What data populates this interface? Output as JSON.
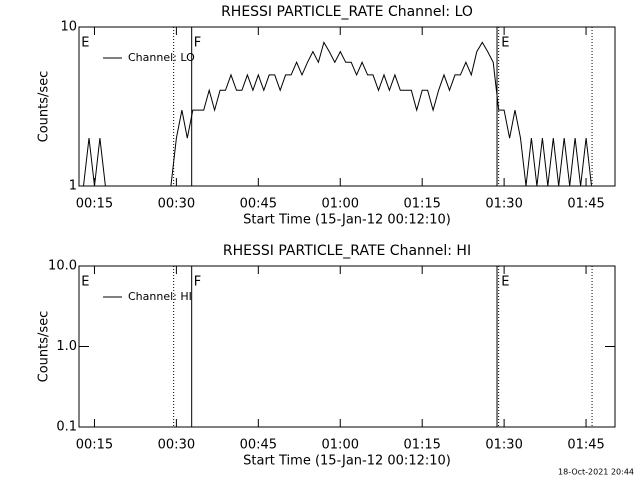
{
  "chart_data": [
    {
      "type": "line",
      "title": "RHESSI PARTICLE_RATE Channel: LO",
      "xlabel": "Start Time (15-Jan-12 00:12:10)",
      "ylabel": "Counts/sec",
      "log_y": true,
      "ylim": [
        1,
        10
      ],
      "yticks": [
        1,
        10
      ],
      "xlim": [
        12.17,
        110.3
      ],
      "xticks": [
        {
          "value": 15,
          "label": "00:15"
        },
        {
          "value": 30,
          "label": "00:30"
        },
        {
          "value": 45,
          "label": "00:45"
        },
        {
          "value": 60,
          "label": "01:00"
        },
        {
          "value": 75,
          "label": "01:15"
        },
        {
          "value": 90,
          "label": "01:30"
        },
        {
          "value": 105,
          "label": "01:45"
        }
      ],
      "vlines": [
        {
          "x": 29.5,
          "style": "dotted"
        },
        {
          "x": 32.8,
          "style": "solid"
        },
        {
          "x": 88.7,
          "style": "solid"
        },
        {
          "x": 89.0,
          "style": "dotted"
        },
        {
          "x": 106.1,
          "style": "dotted"
        }
      ],
      "annotations": [
        {
          "x": 12.4,
          "text": "E"
        },
        {
          "x": 33.0,
          "text": "F"
        },
        {
          "x": 89.3,
          "text": "E"
        }
      ],
      "legend": "upper left",
      "series": [
        {
          "name": "Channel: LO",
          "color": "#000000",
          "x": [
            13,
            14,
            15,
            16,
            17,
            18,
            19,
            20,
            21,
            22,
            23,
            24,
            25,
            26,
            27,
            28,
            29,
            30,
            31,
            32,
            33,
            34,
            35,
            36,
            37,
            38,
            39,
            40,
            41,
            42,
            43,
            44,
            45,
            46,
            47,
            48,
            49,
            50,
            51,
            52,
            53,
            54,
            55,
            56,
            57,
            58,
            59,
            60,
            61,
            62,
            63,
            64,
            65,
            66,
            67,
            68,
            69,
            70,
            71,
            72,
            73,
            74,
            75,
            76,
            77,
            78,
            79,
            80,
            81,
            82,
            83,
            84,
            85,
            86,
            87,
            88,
            89,
            90,
            91,
            92,
            93,
            94,
            95,
            96,
            97,
            98,
            99,
            100,
            101,
            102,
            103,
            104,
            105,
            106
          ],
          "values": [
            1,
            2,
            1,
            2,
            1,
            1,
            1,
            1,
            1,
            1,
            1,
            1,
            1,
            1,
            1,
            1,
            1,
            2,
            3,
            2,
            3,
            3,
            3,
            4,
            3,
            4,
            4,
            5,
            4,
            4,
            5,
            4,
            5,
            4,
            5,
            5,
            4,
            5,
            5,
            6,
            5,
            6,
            7,
            6,
            8,
            7,
            6,
            7,
            6,
            6,
            5,
            6,
            5,
            5,
            4,
            5,
            4,
            5,
            4,
            4,
            4,
            3,
            4,
            4,
            3,
            4,
            5,
            4,
            5,
            5,
            6,
            5,
            7,
            8,
            7,
            6,
            3,
            3,
            2,
            3,
            2,
            1,
            2,
            1,
            2,
            1,
            2,
            1,
            2,
            1,
            2,
            1,
            2,
            1
          ]
        }
      ]
    },
    {
      "type": "line",
      "title": "RHESSI PARTICLE_RATE Channel: HI",
      "xlabel": "Start Time (15-Jan-12 00:12:10)",
      "ylabel": "Counts/sec",
      "log_y": true,
      "ylim": [
        0.1,
        10
      ],
      "yticks": [
        0.1,
        {
          "value": 1,
          "label": "1.0"
        },
        {
          "value": 10,
          "label": "10.0"
        }
      ],
      "xlim": [
        12.17,
        110.3
      ],
      "xticks": [
        {
          "value": 15,
          "label": "00:15"
        },
        {
          "value": 30,
          "label": "00:30"
        },
        {
          "value": 45,
          "label": "00:45"
        },
        {
          "value": 60,
          "label": "01:00"
        },
        {
          "value": 75,
          "label": "01:15"
        },
        {
          "value": 90,
          "label": "01:30"
        },
        {
          "value": 105,
          "label": "01:45"
        }
      ],
      "vlines": [
        {
          "x": 29.5,
          "style": "dotted"
        },
        {
          "x": 32.8,
          "style": "solid"
        },
        {
          "x": 88.7,
          "style": "solid"
        },
        {
          "x": 89.0,
          "style": "dotted"
        },
        {
          "x": 106.1,
          "style": "dotted"
        }
      ],
      "annotations": [
        {
          "x": 12.4,
          "text": "E"
        },
        {
          "x": 33.0,
          "text": "F"
        },
        {
          "x": 89.3,
          "text": "E"
        }
      ],
      "legend": "upper left",
      "series": [
        {
          "name": "Channel: HI",
          "color": "#000000",
          "x": [],
          "values": []
        }
      ]
    }
  ],
  "footer": "18-Oct-2021 20:44"
}
